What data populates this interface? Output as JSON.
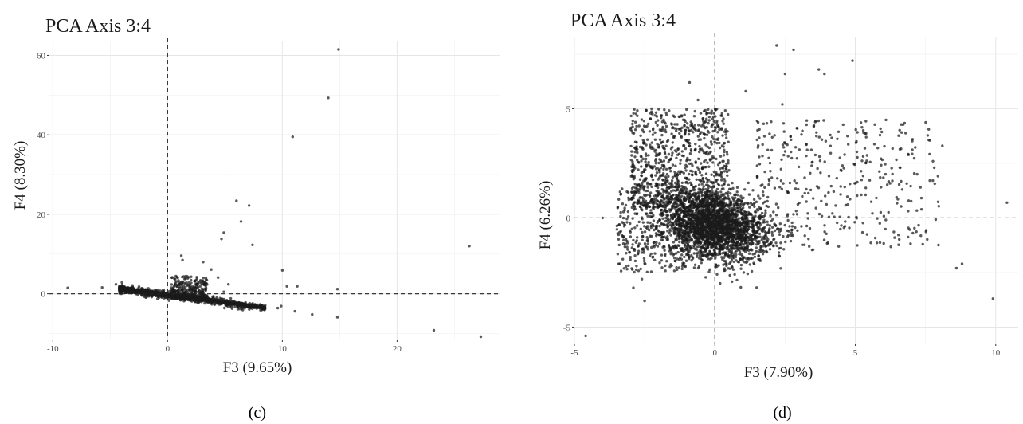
{
  "chart_data": [
    {
      "type": "scatter",
      "panel": "(c)",
      "title": "PCA Axis 3:4",
      "xlabel": "F3 (9.65%)",
      "ylabel": "F4 (8.30%)",
      "xlim": [
        -10.3,
        29
      ],
      "ylim": [
        -11.5,
        63.5
      ],
      "xticks": [
        -10,
        0,
        10,
        20
      ],
      "yticks": [
        0,
        20,
        40,
        60
      ],
      "xminor": [
        -5,
        5,
        15,
        25
      ],
      "yminor": [
        -10,
        10,
        30,
        50
      ],
      "grid": true,
      "reference_lines": {
        "x": 0,
        "y": 0
      },
      "points": [
        [
          14.9,
          61.5
        ],
        [
          14.0,
          49.3
        ],
        [
          10.9,
          39.5
        ],
        [
          6.0,
          23.4
        ],
        [
          7.1,
          22.2
        ],
        [
          6.4,
          18.2
        ],
        [
          4.9,
          15.4
        ],
        [
          4.7,
          13.8
        ],
        [
          7.4,
          12.3
        ],
        [
          1.2,
          9.6
        ],
        [
          1.3,
          8.5
        ],
        [
          3.1,
          8.0
        ],
        [
          3.8,
          6.1
        ],
        [
          10.0,
          5.9
        ],
        [
          -8.7,
          1.5
        ],
        [
          -5.7,
          1.6
        ],
        [
          -4.5,
          2.4
        ],
        [
          26.3,
          12.0
        ],
        [
          27.3,
          -10.8
        ],
        [
          23.2,
          -9.2
        ],
        [
          14.8,
          -5.9
        ],
        [
          14.8,
          1.2
        ],
        [
          12.6,
          -5.2
        ],
        [
          11.1,
          -4.4
        ],
        [
          11.3,
          1.9
        ],
        [
          10.4,
          1.9
        ],
        [
          9.6,
          -3.6
        ],
        [
          9.9,
          -3.1
        ],
        [
          8.5,
          -2.9
        ],
        [
          7.6,
          -3.1
        ],
        [
          6.5,
          -3.0
        ],
        [
          5.5,
          -1.2
        ],
        [
          4.9,
          0.5
        ],
        [
          5.3,
          2.4
        ],
        [
          4.4,
          4.1
        ]
      ],
      "cluster": {
        "x_range": [
          -4.2,
          8.5
        ],
        "y_at_x_min": 1.2,
        "slope": -0.37,
        "spread": 0.55,
        "bulge": {
          "x_range": [
            0.3,
            3.5
          ],
          "y_range": [
            0,
            5
          ]
        },
        "count": 1400
      }
    },
    {
      "type": "scatter",
      "panel": "(d)",
      "title": "PCA Axis 3:4",
      "xlabel": "F3 (7.90%)",
      "ylabel": "F4 (6.26%)",
      "xlim": [
        -5.0,
        10.8
      ],
      "ylim": [
        -5.75,
        8.3
      ],
      "xticks": [
        -5,
        0,
        5,
        10
      ],
      "yticks": [
        -5,
        0,
        5
      ],
      "xminor": [
        -2.5,
        2.5,
        7.5
      ],
      "yminor": [
        -2.5,
        2.5,
        7.5
      ],
      "grid": true,
      "reference_lines": {
        "x": 0,
        "y": 0
      },
      "points": [
        [
          -4.6,
          -5.4
        ],
        [
          9.9,
          -3.7
        ],
        [
          10.4,
          0.7
        ],
        [
          2.2,
          7.9
        ],
        [
          2.8,
          7.7
        ],
        [
          3.7,
          6.8
        ],
        [
          3.9,
          6.6
        ],
        [
          4.9,
          7.2
        ],
        [
          2.5,
          6.6
        ],
        [
          -0.9,
          6.2
        ],
        [
          8.1,
          3.3
        ],
        [
          8.8,
          -2.1
        ],
        [
          8.6,
          -2.3
        ],
        [
          -2.5,
          -3.8
        ],
        [
          -2.9,
          -3.2
        ],
        [
          -2.6,
          -2.8
        ],
        [
          -4.0,
          0.0
        ],
        [
          -3.4,
          -0.3
        ],
        [
          1.1,
          5.8
        ],
        [
          2.4,
          5.2
        ],
        [
          5.8,
          3.2
        ],
        [
          6.6,
          2.3
        ],
        [
          6.4,
          -0.9
        ],
        [
          7.2,
          2.0
        ],
        [
          -0.6,
          5.4
        ]
      ],
      "cluster": {
        "core": {
          "x_center": 0.0,
          "y_center": -0.4,
          "x_spread": 0.9,
          "y_spread": 0.75,
          "count": 2600
        },
        "upper": {
          "x_range": [
            -3.0,
            0.5
          ],
          "y_range": [
            0.5,
            5.0
          ],
          "count": 900
        },
        "right": {
          "x_range": [
            1.5,
            8.0
          ],
          "y_range": [
            -1.5,
            4.5
          ],
          "count": 380
        },
        "left": {
          "x_range": [
            -3.5,
            -1.0
          ],
          "y_range": [
            -2.5,
            1.5
          ],
          "count": 300
        }
      }
    }
  ]
}
